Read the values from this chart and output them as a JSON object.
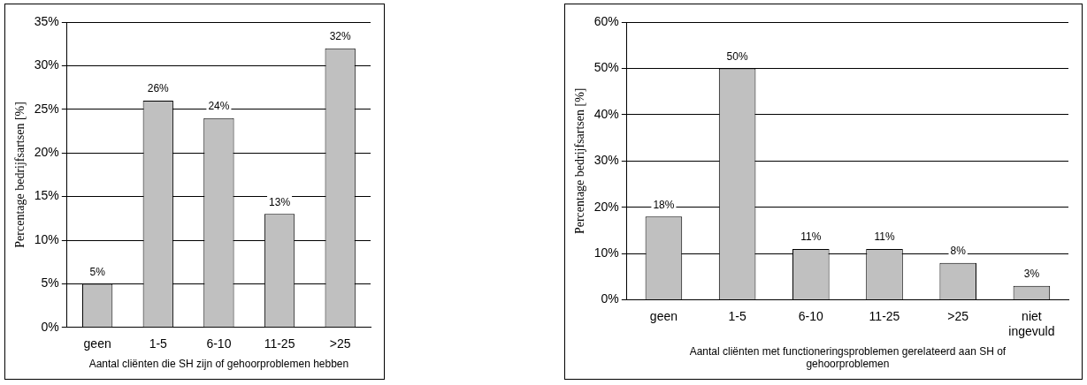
{
  "chart_data": [
    {
      "type": "bar",
      "categories": [
        "geen",
        "1-5",
        "6-10",
        "11-25",
        ">25"
      ],
      "values": [
        5,
        26,
        24,
        13,
        32
      ],
      "color": "#c0c0c0",
      "value_labels": [
        "5%",
        "26%",
        "24%",
        "13%",
        "32%"
      ],
      "ylabel": "Percentage bedrijfsartsen [%]",
      "xlabel": "Aantal cliënten die SH zijn of gehoorproblemen hebben",
      "ylim": [
        0,
        35
      ],
      "yticks": [
        {
          "value": 0,
          "label": "0%"
        },
        {
          "value": 5,
          "label": "5%"
        },
        {
          "value": 10,
          "label": "10%"
        },
        {
          "value": 15,
          "label": "15%"
        },
        {
          "value": 20,
          "label": "20%"
        },
        {
          "value": 25,
          "label": "25%"
        },
        {
          "value": 30,
          "label": "30%"
        },
        {
          "value": 35,
          "label": "35%"
        }
      ],
      "grid": "y",
      "legend": false
    },
    {
      "type": "bar",
      "categories": [
        "geen",
        "1-5",
        "6-10",
        "11-25",
        ">25",
        "niet ingevuld"
      ],
      "values": [
        18,
        50,
        11,
        11,
        8,
        3
      ],
      "color": "#c0c0c0",
      "value_labels": [
        "18%",
        "50%",
        "11%",
        "11%",
        "8%",
        "3%"
      ],
      "ylabel": "Percentage bedrijfsartsen [%]",
      "xlabel": "Aantal cliënten met functioneringsproblemen gerelateerd aan SH of gehoorproblemen",
      "ylim": [
        0,
        60
      ],
      "yticks": [
        {
          "value": 0,
          "label": "0%"
        },
        {
          "value": 10,
          "label": "10%"
        },
        {
          "value": 20,
          "label": "20%"
        },
        {
          "value": 30,
          "label": "30%"
        },
        {
          "value": 40,
          "label": "40%"
        },
        {
          "value": 50,
          "label": "50%"
        },
        {
          "value": 60,
          "label": "60%"
        }
      ],
      "grid": "y",
      "legend": false
    }
  ]
}
